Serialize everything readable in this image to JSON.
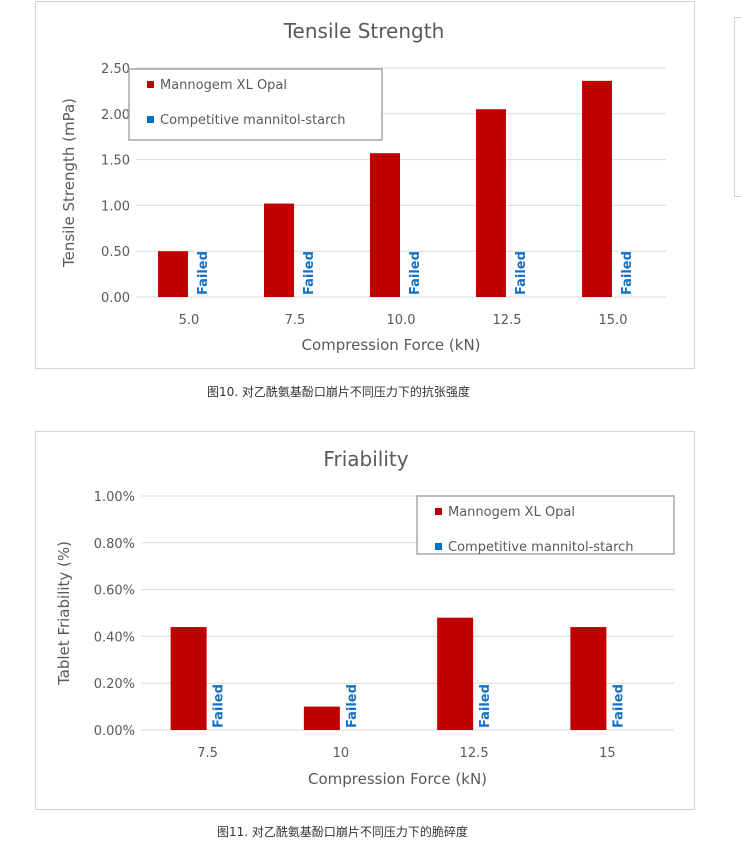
{
  "charts_meta": {
    "colors": {
      "series1": "#c00000",
      "series2": "#0070c0",
      "grid": "#d9d9d9",
      "text": "#595959"
    }
  },
  "chart_data": [
    {
      "type": "bar",
      "title": "Tensile Strength",
      "xlabel": "Compression Force (kN)",
      "ylabel": "Tensile Strength (mPa)",
      "categories": [
        "5.0",
        "7.5",
        "10.0",
        "12.5",
        "15.0"
      ],
      "ylim": [
        0,
        2.5
      ],
      "yticks": [
        "0.00",
        "0.50",
        "1.00",
        "1.50",
        "2.00",
        "2.50"
      ],
      "grid": true,
      "legend_position": "top-left",
      "series": [
        {
          "name": "Mannogem XL Opal",
          "values": [
            0.5,
            1.02,
            1.57,
            2.05,
            2.36
          ]
        },
        {
          "name": "Competitive mannitol-starch",
          "values": [
            null,
            null,
            null,
            null,
            null
          ]
        }
      ],
      "annotations": [
        "Failed",
        "Failed",
        "Failed",
        "Failed",
        "Failed"
      ]
    },
    {
      "type": "bar",
      "title": "Friability",
      "xlabel": "Compression Force (kN)",
      "ylabel": "Tablet Friability (%)",
      "categories": [
        "7.5",
        "10",
        "12.5",
        "15"
      ],
      "ylim": [
        0,
        1.0
      ],
      "yticks": [
        "0.00%",
        "0.20%",
        "0.40%",
        "0.60%",
        "0.80%",
        "1.00%"
      ],
      "grid": true,
      "legend_position": "top-right",
      "series": [
        {
          "name": "Mannogem XL Opal",
          "values": [
            0.44,
            0.1,
            0.48,
            0.44
          ]
        },
        {
          "name": "Competitive mannitol-starch",
          "values": [
            null,
            null,
            null,
            null
          ]
        }
      ],
      "annotations": [
        "Failed",
        "Failed",
        "Failed",
        "Failed"
      ]
    }
  ],
  "captions": [
    "图10. 对乙酰氨基酚口崩片不同压力下的抗张强度",
    "图11. 对乙酰氨基酚口崩片不同压力下的脆碎度"
  ]
}
